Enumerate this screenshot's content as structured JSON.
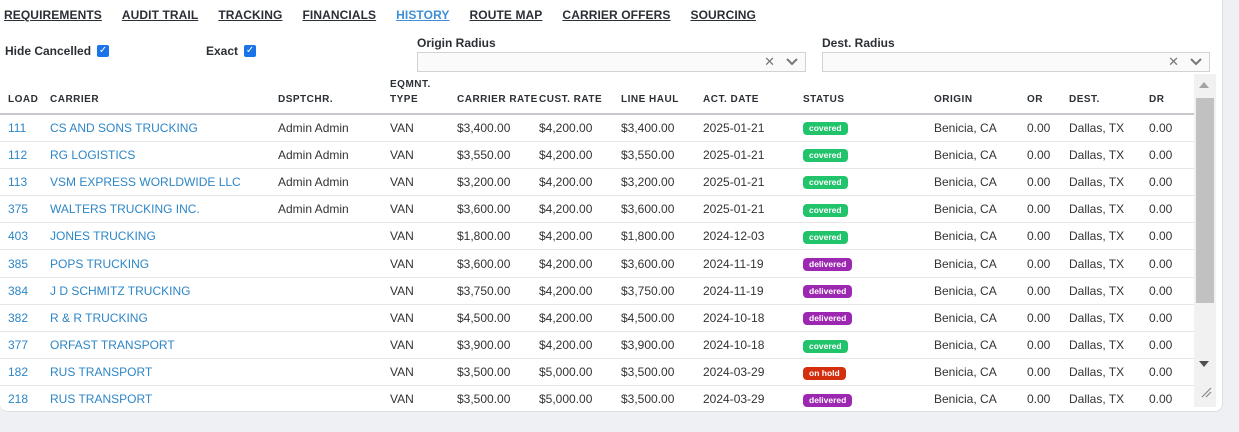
{
  "tabs": [
    "REQUIREMENTS",
    "AUDIT TRAIL",
    "TRACKING",
    "FINANCIALS",
    "HISTORY",
    "ROUTE MAP",
    "CARRIER OFFERS",
    "SOURCING"
  ],
  "active_tab": "HISTORY",
  "filters": {
    "hide_cancelled_label": "Hide Cancelled",
    "hide_cancelled_checked": true,
    "exact_label": "Exact",
    "exact_checked": true,
    "origin_radius_label": "Origin Radius",
    "dest_radius_label": "Dest. Radius",
    "clear_glyph": "✕",
    "dropdown_glyph": "⌄"
  },
  "columns": [
    "LOAD",
    "CARRIER",
    "DSPTCHR.",
    "EQMNT. TYPE",
    "CARRIER RATE",
    "CUST. RATE",
    "LINE HAUL",
    "ACT. DATE",
    "STATUS",
    "ORIGIN",
    "OR",
    "DEST.",
    "DR"
  ],
  "status_colors": {
    "covered": "#21c36b",
    "delivered": "#9c27b0",
    "on hold": "#d32f0f"
  },
  "rows": [
    {
      "load": "111",
      "carrier": "CS AND SONS TRUCKING",
      "dispatcher": "Admin Admin",
      "equipment": "VAN",
      "carrier_rate": "$3,400.00",
      "cust_rate": "$4,200.00",
      "line_haul": "$3,400.00",
      "act_date": "2025-01-21",
      "status": "covered",
      "origin": "Benicia, CA",
      "or": "0.00",
      "dest": "Dallas, TX",
      "dr": "0.00"
    },
    {
      "load": "112",
      "carrier": "RG LOGISTICS",
      "dispatcher": "Admin Admin",
      "equipment": "VAN",
      "carrier_rate": "$3,550.00",
      "cust_rate": "$4,200.00",
      "line_haul": "$3,550.00",
      "act_date": "2025-01-21",
      "status": "covered",
      "origin": "Benicia, CA",
      "or": "0.00",
      "dest": "Dallas, TX",
      "dr": "0.00"
    },
    {
      "load": "113",
      "carrier": "VSM EXPRESS WORLDWIDE LLC",
      "dispatcher": "Admin Admin",
      "equipment": "VAN",
      "carrier_rate": "$3,200.00",
      "cust_rate": "$4,200.00",
      "line_haul": "$3,200.00",
      "act_date": "2025-01-21",
      "status": "covered",
      "origin": "Benicia, CA",
      "or": "0.00",
      "dest": "Dallas, TX",
      "dr": "0.00"
    },
    {
      "load": "375",
      "carrier": "WALTERS TRUCKING INC.",
      "dispatcher": "Admin Admin",
      "equipment": "VAN",
      "carrier_rate": "$3,600.00",
      "cust_rate": "$4,200.00",
      "line_haul": "$3,600.00",
      "act_date": "2025-01-21",
      "status": "covered",
      "origin": "Benicia, CA",
      "or": "0.00",
      "dest": "Dallas, TX",
      "dr": "0.00"
    },
    {
      "load": "403",
      "carrier": "JONES TRUCKING",
      "dispatcher": "",
      "equipment": "VAN",
      "carrier_rate": "$1,800.00",
      "cust_rate": "$4,200.00",
      "line_haul": "$1,800.00",
      "act_date": "2024-12-03",
      "status": "covered",
      "origin": "Benicia, CA",
      "or": "0.00",
      "dest": "Dallas, TX",
      "dr": "0.00"
    },
    {
      "load": "385",
      "carrier": "POPS TRUCKING",
      "dispatcher": "",
      "equipment": "VAN",
      "carrier_rate": "$3,600.00",
      "cust_rate": "$4,200.00",
      "line_haul": "$3,600.00",
      "act_date": "2024-11-19",
      "status": "delivered",
      "origin": "Benicia, CA",
      "or": "0.00",
      "dest": "Dallas, TX",
      "dr": "0.00"
    },
    {
      "load": "384",
      "carrier": "J D SCHMITZ TRUCKING",
      "dispatcher": "",
      "equipment": "VAN",
      "carrier_rate": "$3,750.00",
      "cust_rate": "$4,200.00",
      "line_haul": "$3,750.00",
      "act_date": "2024-11-19",
      "status": "delivered",
      "origin": "Benicia, CA",
      "or": "0.00",
      "dest": "Dallas, TX",
      "dr": "0.00"
    },
    {
      "load": "382",
      "carrier": "R & R TRUCKING",
      "dispatcher": "",
      "equipment": "VAN",
      "carrier_rate": "$4,500.00",
      "cust_rate": "$4,200.00",
      "line_haul": "$4,500.00",
      "act_date": "2024-10-18",
      "status": "delivered",
      "origin": "Benicia, CA",
      "or": "0.00",
      "dest": "Dallas, TX",
      "dr": "0.00"
    },
    {
      "load": "377",
      "carrier": "ORFAST TRANSPORT",
      "dispatcher": "",
      "equipment": "VAN",
      "carrier_rate": "$3,900.00",
      "cust_rate": "$4,200.00",
      "line_haul": "$3,900.00",
      "act_date": "2024-10-18",
      "status": "covered",
      "origin": "Benicia, CA",
      "or": "0.00",
      "dest": "Dallas, TX",
      "dr": "0.00"
    },
    {
      "load": "182",
      "carrier": "RUS TRANSPORT",
      "dispatcher": "",
      "equipment": "VAN",
      "carrier_rate": "$3,500.00",
      "cust_rate": "$5,000.00",
      "line_haul": "$3,500.00",
      "act_date": "2024-03-29",
      "status": "on hold",
      "origin": "Benicia, CA",
      "or": "0.00",
      "dest": "Dallas, TX",
      "dr": "0.00"
    },
    {
      "load": "218",
      "carrier": "RUS TRANSPORT",
      "dispatcher": "",
      "equipment": "VAN",
      "carrier_rate": "$3,500.00",
      "cust_rate": "$5,000.00",
      "line_haul": "$3,500.00",
      "act_date": "2024-03-29",
      "status": "delivered",
      "origin": "Benicia, CA",
      "or": "0.00",
      "dest": "Dallas, TX",
      "dr": "0.00"
    }
  ]
}
